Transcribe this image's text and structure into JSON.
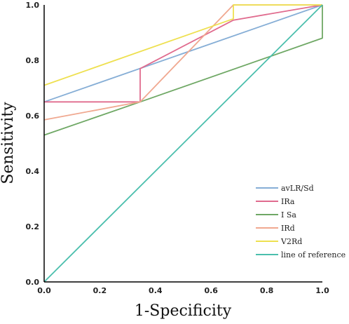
{
  "chart_data": {
    "type": "line",
    "xlabel": "1-Specificity",
    "ylabel": "Sensitivity",
    "xlim": [
      0,
      1
    ],
    "ylim": [
      0,
      1
    ],
    "x_ticks": [
      "0.0",
      "0.2",
      "0.4",
      "0.6",
      "0.8",
      "1.0"
    ],
    "y_ticks": [
      "0.0",
      "0.2",
      "0.4",
      "0.6",
      "0.8",
      "1.0"
    ],
    "grid": false,
    "legend_position": "bottom-right",
    "series": [
      {
        "name": "avLR/Sd",
        "color": "#86aed6",
        "points": [
          [
            0,
            0.65
          ],
          [
            1,
            1
          ]
        ]
      },
      {
        "name": "IRa",
        "color": "#e06b8e",
        "points": [
          [
            0,
            0.65
          ],
          [
            0.345,
            0.65
          ],
          [
            0.345,
            0.77
          ],
          [
            0.68,
            0.945
          ],
          [
            1,
            1
          ]
        ]
      },
      {
        "name": "I Sa",
        "color": "#6fa865",
        "points": [
          [
            0,
            0.53
          ],
          [
            0.345,
            0.65
          ],
          [
            1,
            0.88
          ],
          [
            1,
            1
          ]
        ]
      },
      {
        "name": "IRd",
        "color": "#f0a890",
        "points": [
          [
            0,
            0.585
          ],
          [
            0.345,
            0.65
          ],
          [
            0.68,
            1
          ],
          [
            1,
            1
          ]
        ]
      },
      {
        "name": "V2Rd",
        "color": "#eee050",
        "points": [
          [
            0,
            0.71
          ],
          [
            0.68,
            0.95
          ],
          [
            0.68,
            1
          ],
          [
            1,
            1
          ]
        ]
      },
      {
        "name": "line of reference",
        "color": "#4bbfad",
        "points": [
          [
            0,
            0
          ],
          [
            1,
            1
          ]
        ]
      }
    ]
  }
}
